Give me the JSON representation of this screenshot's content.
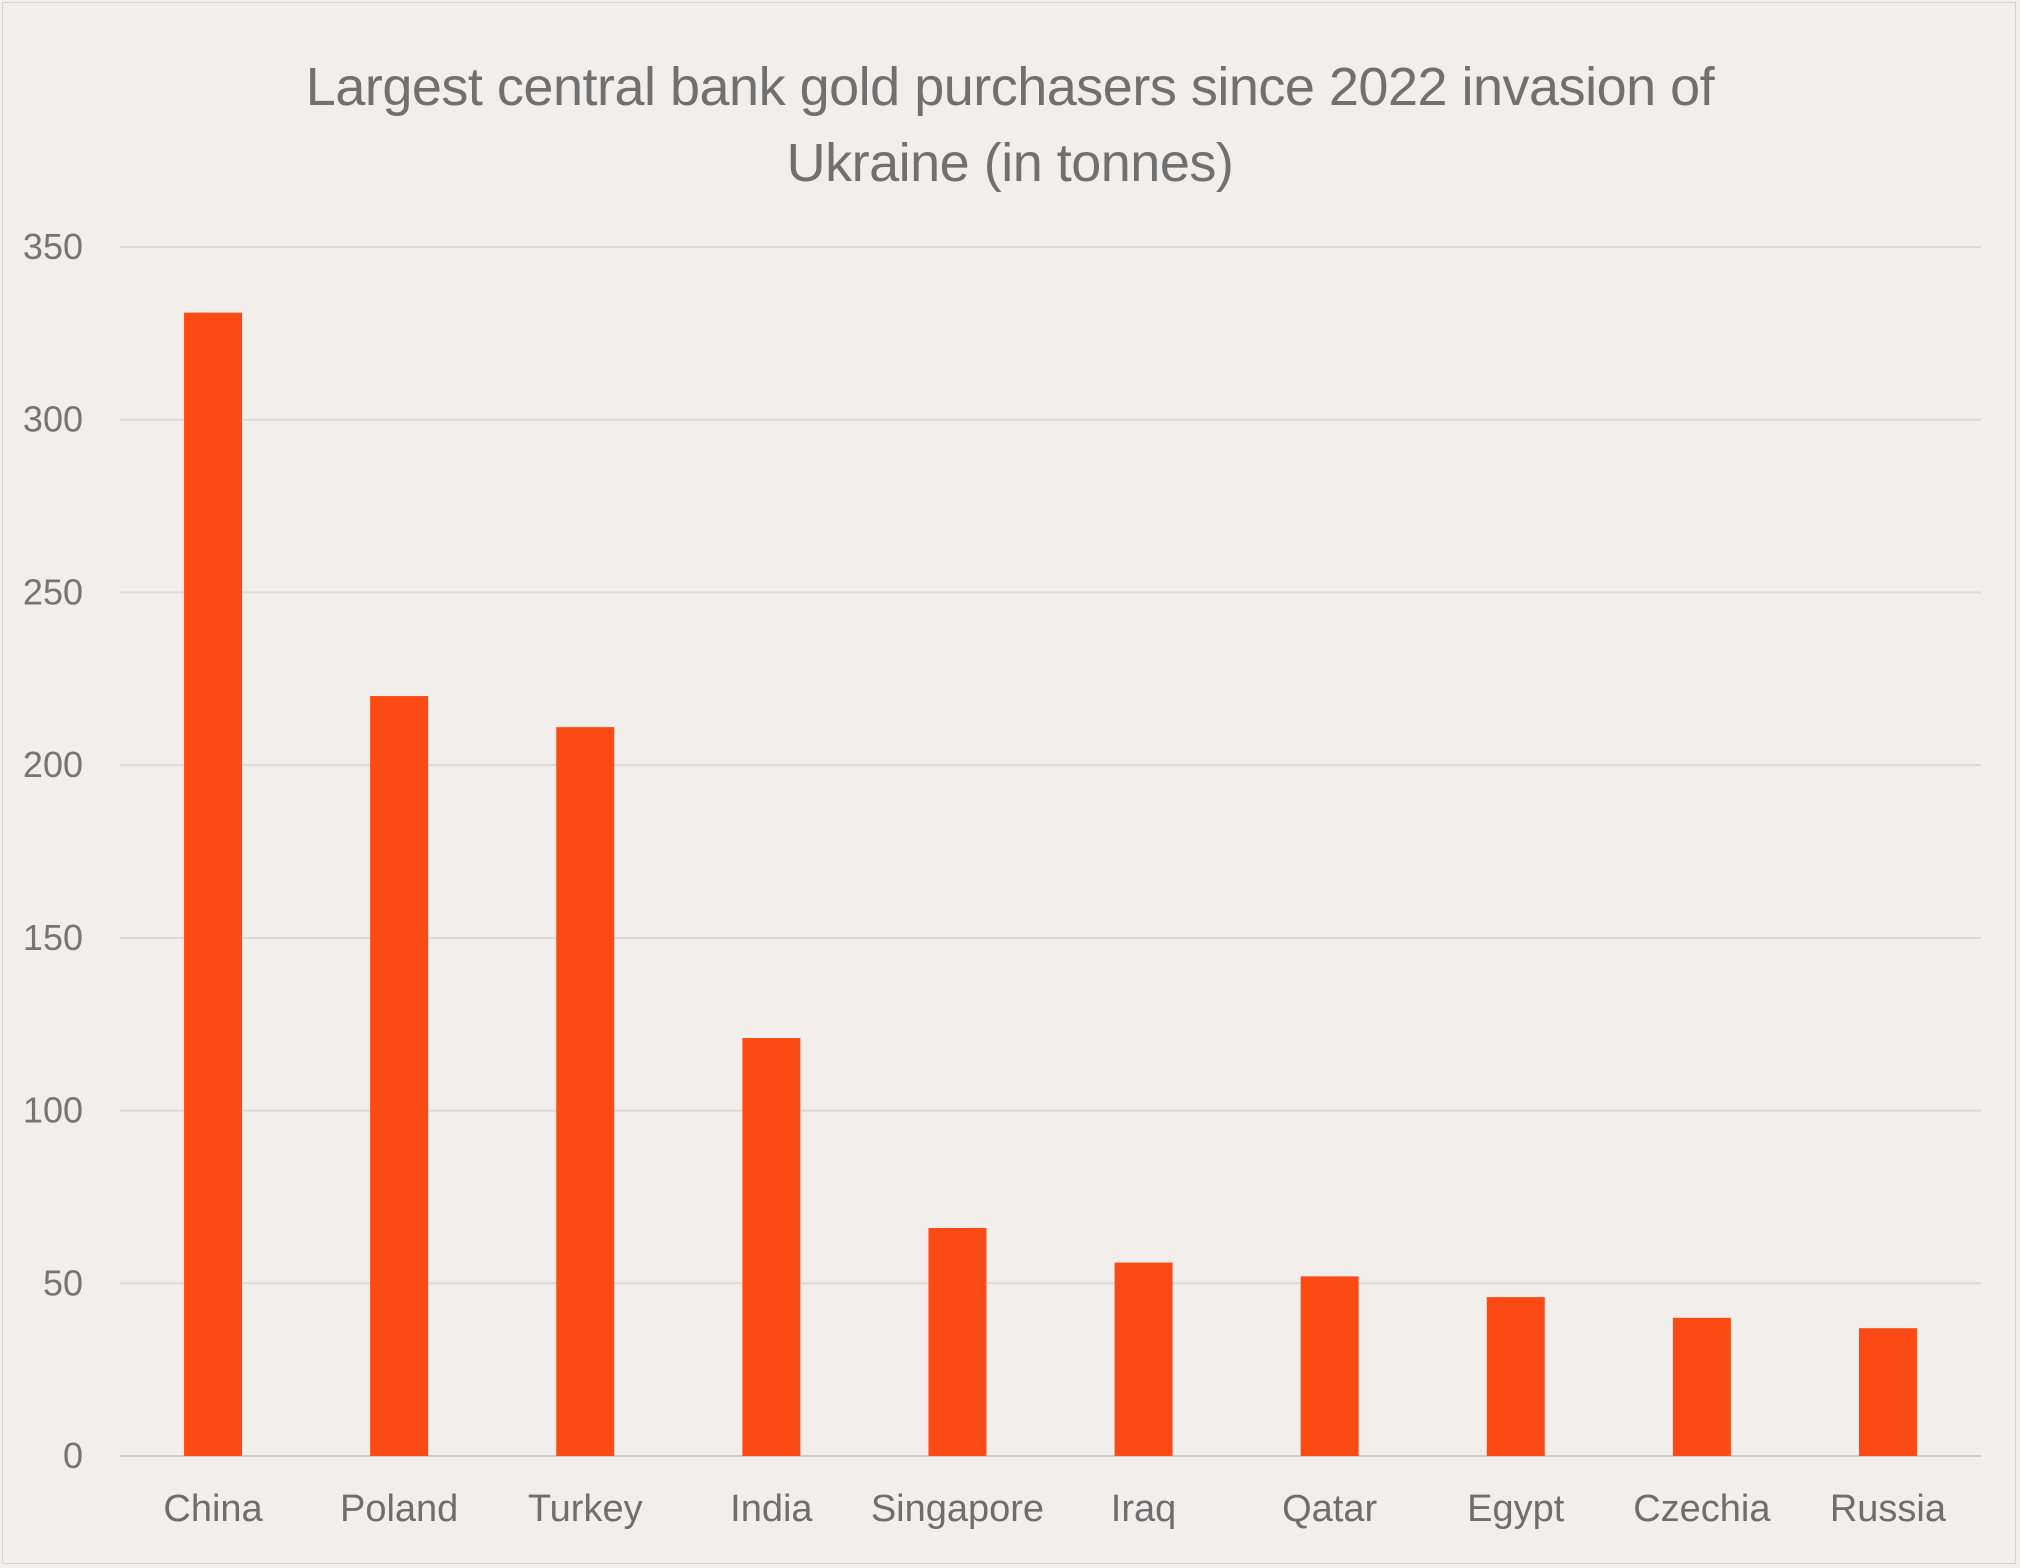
{
  "chart_data": {
    "type": "bar",
    "title_lines": [
      "Largest central bank gold purchasers since 2022 invasion of",
      "Ukraine (in tonnes)"
    ],
    "categories": [
      "China",
      "Poland",
      "Turkey",
      "India",
      "Singapore",
      "Iraq",
      "Qatar",
      "Egypt",
      "Czechia",
      "Russia"
    ],
    "values": [
      331,
      220,
      211,
      121,
      66,
      56,
      52,
      46,
      40,
      37
    ],
    "ylim": [
      0,
      350
    ],
    "yticks": [
      0,
      50,
      100,
      150,
      200,
      250,
      300,
      350
    ],
    "grid": true,
    "legend": "none",
    "bar_color": "#fc4a14"
  }
}
